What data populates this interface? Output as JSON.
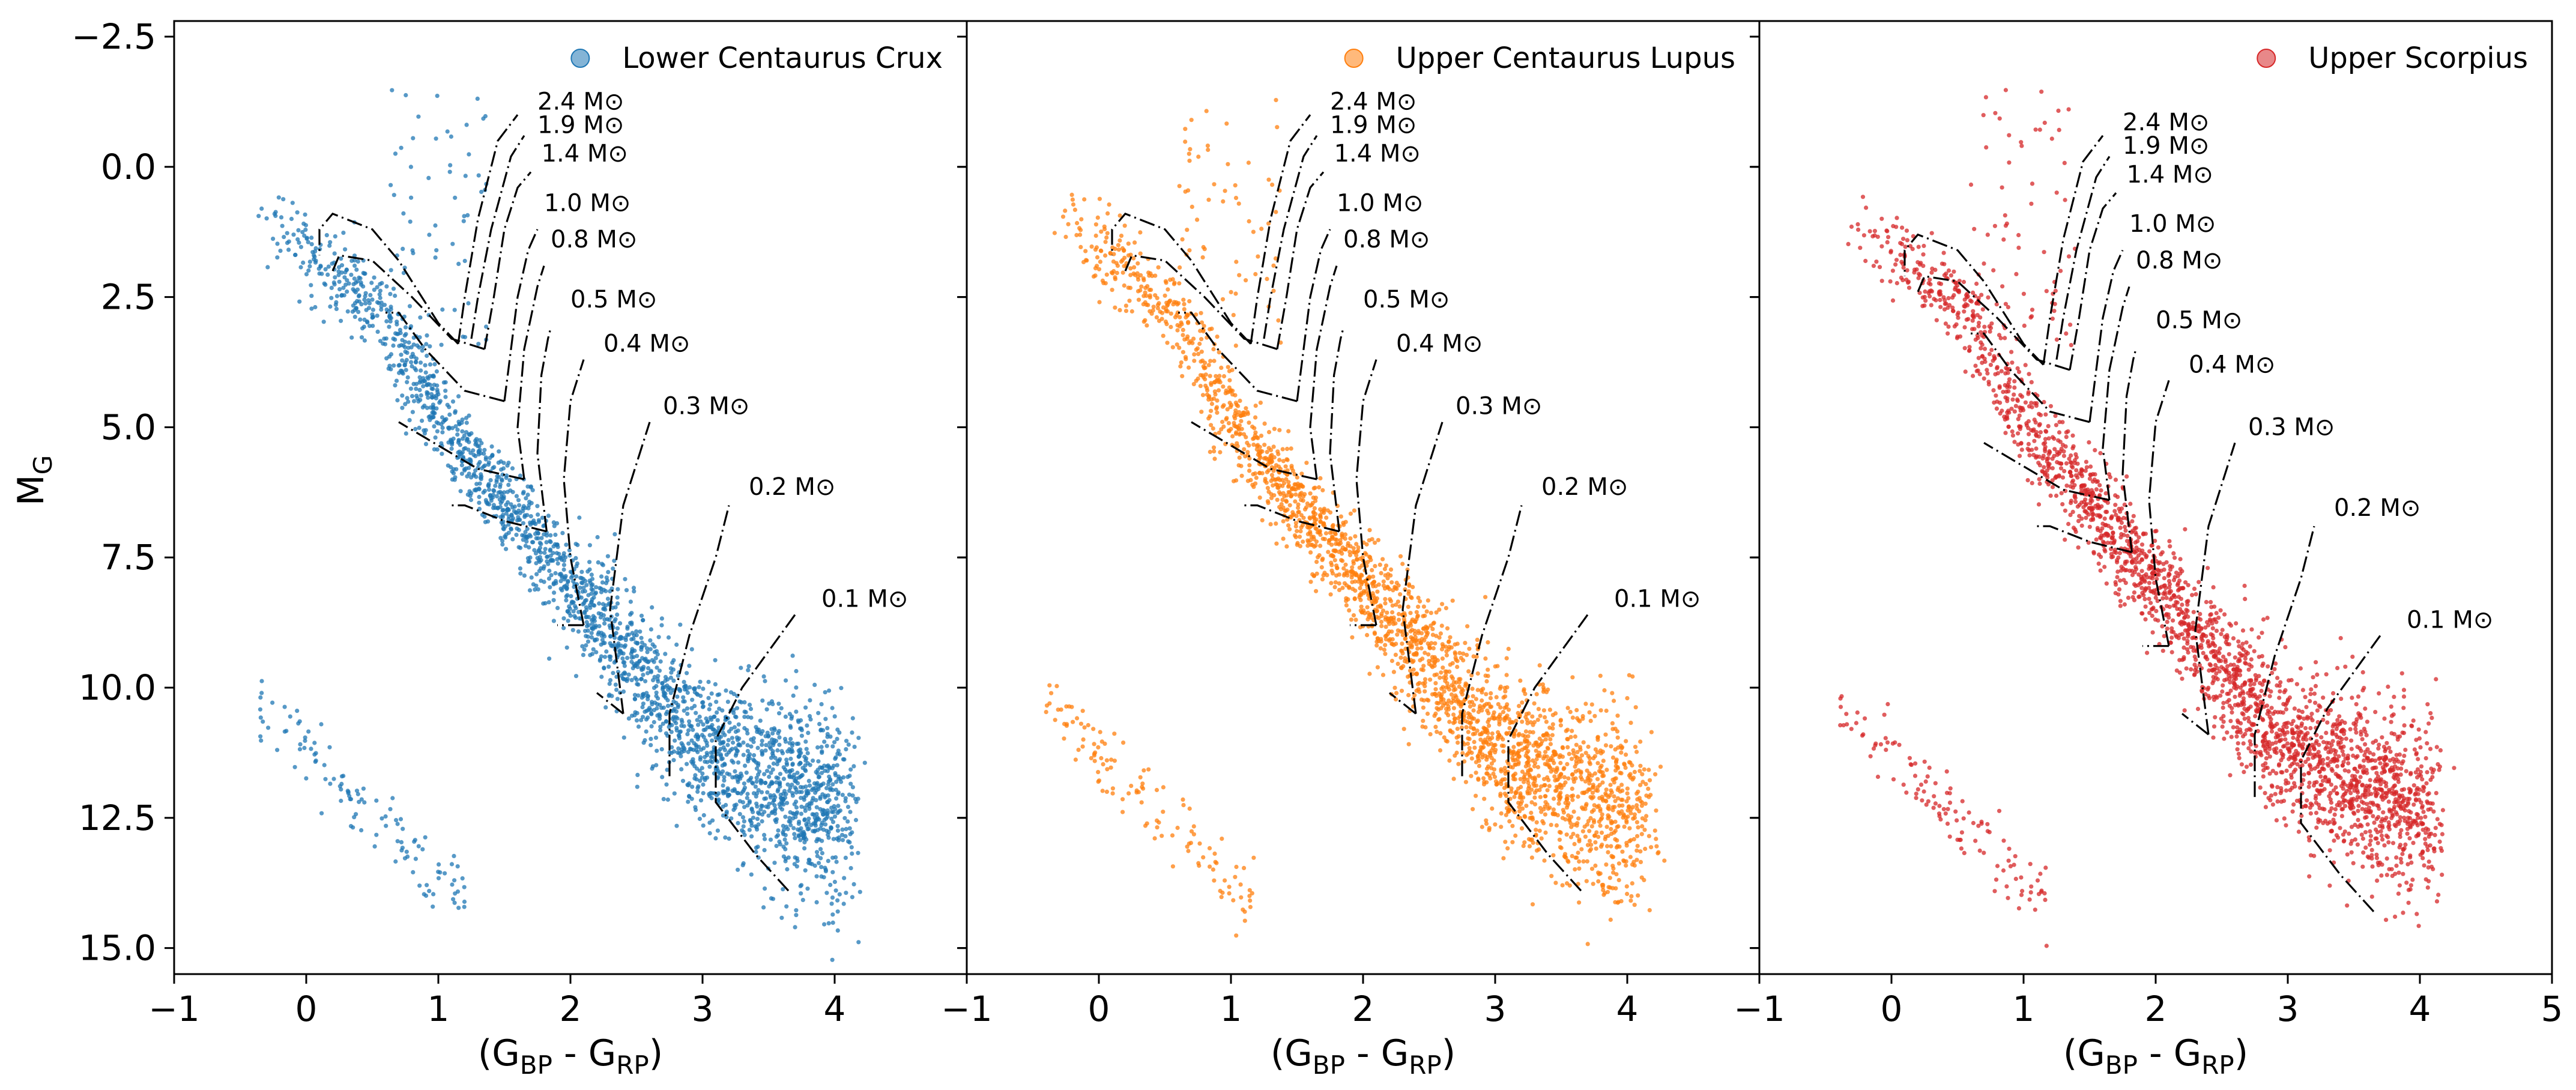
{
  "chart_data": [
    {
      "type": "scatter",
      "panel": "Lower Centaurus Crux",
      "legend": "Lower Centaurus Crux",
      "color": "#1f77b4",
      "xlabel": "(G$BP - G$RP)",
      "ylabel": "M$G",
      "xlim": [
        -1,
        5
      ],
      "ylim": [
        15.5,
        -2.8
      ],
      "y_inverted": true,
      "x_ticks": [
        "−1",
        "0",
        "1",
        "2",
        "3",
        "4"
      ],
      "y_ticks": [
        "−2.5",
        "0.0",
        "2.5",
        "5.0",
        "7.5",
        "10.0",
        "12.5",
        "15.0"
      ],
      "legend_position": "top-right"
    },
    {
      "type": "scatter",
      "panel": "Upper Centaurus Lupus",
      "legend": "Upper Centaurus Lupus",
      "color": "#ff7f0e",
      "xlabel": "(G$BP - G$RP)",
      "xlim": [
        -1,
        5
      ],
      "ylim": [
        15.5,
        -2.8
      ],
      "y_inverted": true,
      "x_ticks": [
        "−1",
        "0",
        "1",
        "2",
        "3",
        "4"
      ],
      "legend_position": "top-right"
    },
    {
      "type": "scatter",
      "panel": "Upper Scorpius",
      "legend": "Upper Scorpius",
      "color": "#d62728",
      "xlabel": "(G$BP - G$RP)",
      "xlim": [
        -1,
        5
      ],
      "ylim": [
        15.5,
        -2.8
      ],
      "y_inverted": true,
      "x_ticks": [
        "−1",
        "0",
        "1",
        "2",
        "3",
        "4",
        "5"
      ],
      "legend_position": "top-right"
    }
  ],
  "tracks": [
    {
      "label": "2.4 M⊙",
      "lx": 1.75,
      "ly": -1.1,
      "path": [
        [
          1.15,
          3.4
        ],
        [
          1.2,
          2.5
        ],
        [
          1.3,
          1.0
        ],
        [
          1.45,
          -0.5
        ],
        [
          1.6,
          -1.0
        ]
      ],
      "loop": [
        [
          1.15,
          3.4
        ],
        [
          1.0,
          3.0
        ],
        [
          0.7,
          1.8
        ],
        [
          0.5,
          1.2
        ],
        [
          0.2,
          0.9
        ],
        [
          0.1,
          1.2
        ],
        [
          0.1,
          1.7
        ]
      ]
    },
    {
      "label": "1.9 M⊙",
      "lx": 1.75,
      "ly": -0.65,
      "path": [
        [
          1.25,
          3.3
        ],
        [
          1.3,
          2.5
        ],
        [
          1.4,
          1.2
        ],
        [
          1.55,
          -0.2
        ],
        [
          1.65,
          -0.6
        ]
      ],
      "loop": null
    },
    {
      "label": "1.4 M⊙",
      "lx": 1.78,
      "ly": -0.1,
      "path": [
        [
          1.35,
          3.5
        ],
        [
          1.42,
          2.5
        ],
        [
          1.5,
          1.2
        ],
        [
          1.6,
          0.4
        ],
        [
          1.7,
          0.1
        ]
      ],
      "loop": [
        [
          1.35,
          3.5
        ],
        [
          1.1,
          3.3
        ],
        [
          0.8,
          2.5
        ],
        [
          0.5,
          1.8
        ],
        [
          0.25,
          1.7
        ],
        [
          0.2,
          2.0
        ]
      ]
    },
    {
      "label": "1.0 M⊙",
      "lx": 1.8,
      "ly": 0.85,
      "path": [
        [
          1.5,
          4.5
        ],
        [
          1.55,
          3.5
        ],
        [
          1.6,
          2.5
        ],
        [
          1.68,
          1.6
        ],
        [
          1.75,
          1.2
        ]
      ],
      "loop": [
        [
          1.5,
          4.5
        ],
        [
          1.2,
          4.3
        ],
        [
          0.9,
          3.5
        ],
        [
          0.7,
          2.8
        ],
        [
          0.6,
          2.8
        ]
      ]
    },
    {
      "label": "0.8 M⊙",
      "lx": 1.85,
      "ly": 1.55,
      "path": [
        [
          1.65,
          6.0
        ],
        [
          1.6,
          5.0
        ],
        [
          1.65,
          3.5
        ],
        [
          1.75,
          2.3
        ],
        [
          1.8,
          1.9
        ]
      ],
      "loop": [
        [
          1.65,
          6.0
        ],
        [
          1.3,
          5.8
        ],
        [
          0.9,
          5.2
        ],
        [
          0.7,
          4.9
        ]
      ]
    },
    {
      "label": "0.5 M⊙",
      "lx": 2.0,
      "ly": 2.7,
      "path": [
        [
          1.82,
          7.0
        ],
        [
          1.75,
          5.5
        ],
        [
          1.78,
          4.0
        ],
        [
          1.83,
          3.3
        ],
        [
          1.85,
          3.1
        ]
      ],
      "loop": [
        [
          1.82,
          7.0
        ],
        [
          1.5,
          6.8
        ],
        [
          1.2,
          6.5
        ],
        [
          1.1,
          6.5
        ]
      ]
    },
    {
      "label": "0.4 M⊙",
      "lx": 2.25,
      "ly": 3.55,
      "path": [
        [
          2.1,
          8.8
        ],
        [
          2.0,
          7.5
        ],
        [
          1.95,
          6.0
        ],
        [
          2.0,
          4.5
        ],
        [
          2.1,
          3.7
        ]
      ],
      "loop": [
        [
          2.1,
          8.8
        ],
        [
          1.9,
          8.8
        ]
      ]
    },
    {
      "label": "0.3 M⊙",
      "lx": 2.7,
      "ly": 4.75,
      "path": [
        [
          2.4,
          10.5
        ],
        [
          2.3,
          8.5
        ],
        [
          2.4,
          6.5
        ],
        [
          2.55,
          5.3
        ],
        [
          2.6,
          4.9
        ]
      ],
      "loop": [
        [
          2.4,
          10.5
        ],
        [
          2.2,
          10.1
        ]
      ]
    },
    {
      "label": "0.2 M⊙",
      "lx": 3.35,
      "ly": 6.3,
      "path": [
        [
          2.75,
          11.7
        ],
        [
          2.75,
          10.5
        ],
        [
          2.9,
          9.0
        ],
        [
          3.1,
          7.5
        ],
        [
          3.2,
          6.5
        ]
      ],
      "loop": null
    },
    {
      "label": "0.1 M⊙",
      "lx": 3.9,
      "ly": 8.45,
      "path": [
        [
          3.65,
          13.9
        ],
        [
          3.4,
          13.2
        ],
        [
          3.1,
          12.2
        ],
        [
          3.1,
          11.0
        ],
        [
          3.3,
          10.0
        ],
        [
          3.7,
          8.6
        ]
      ],
      "loop": null
    }
  ]
}
